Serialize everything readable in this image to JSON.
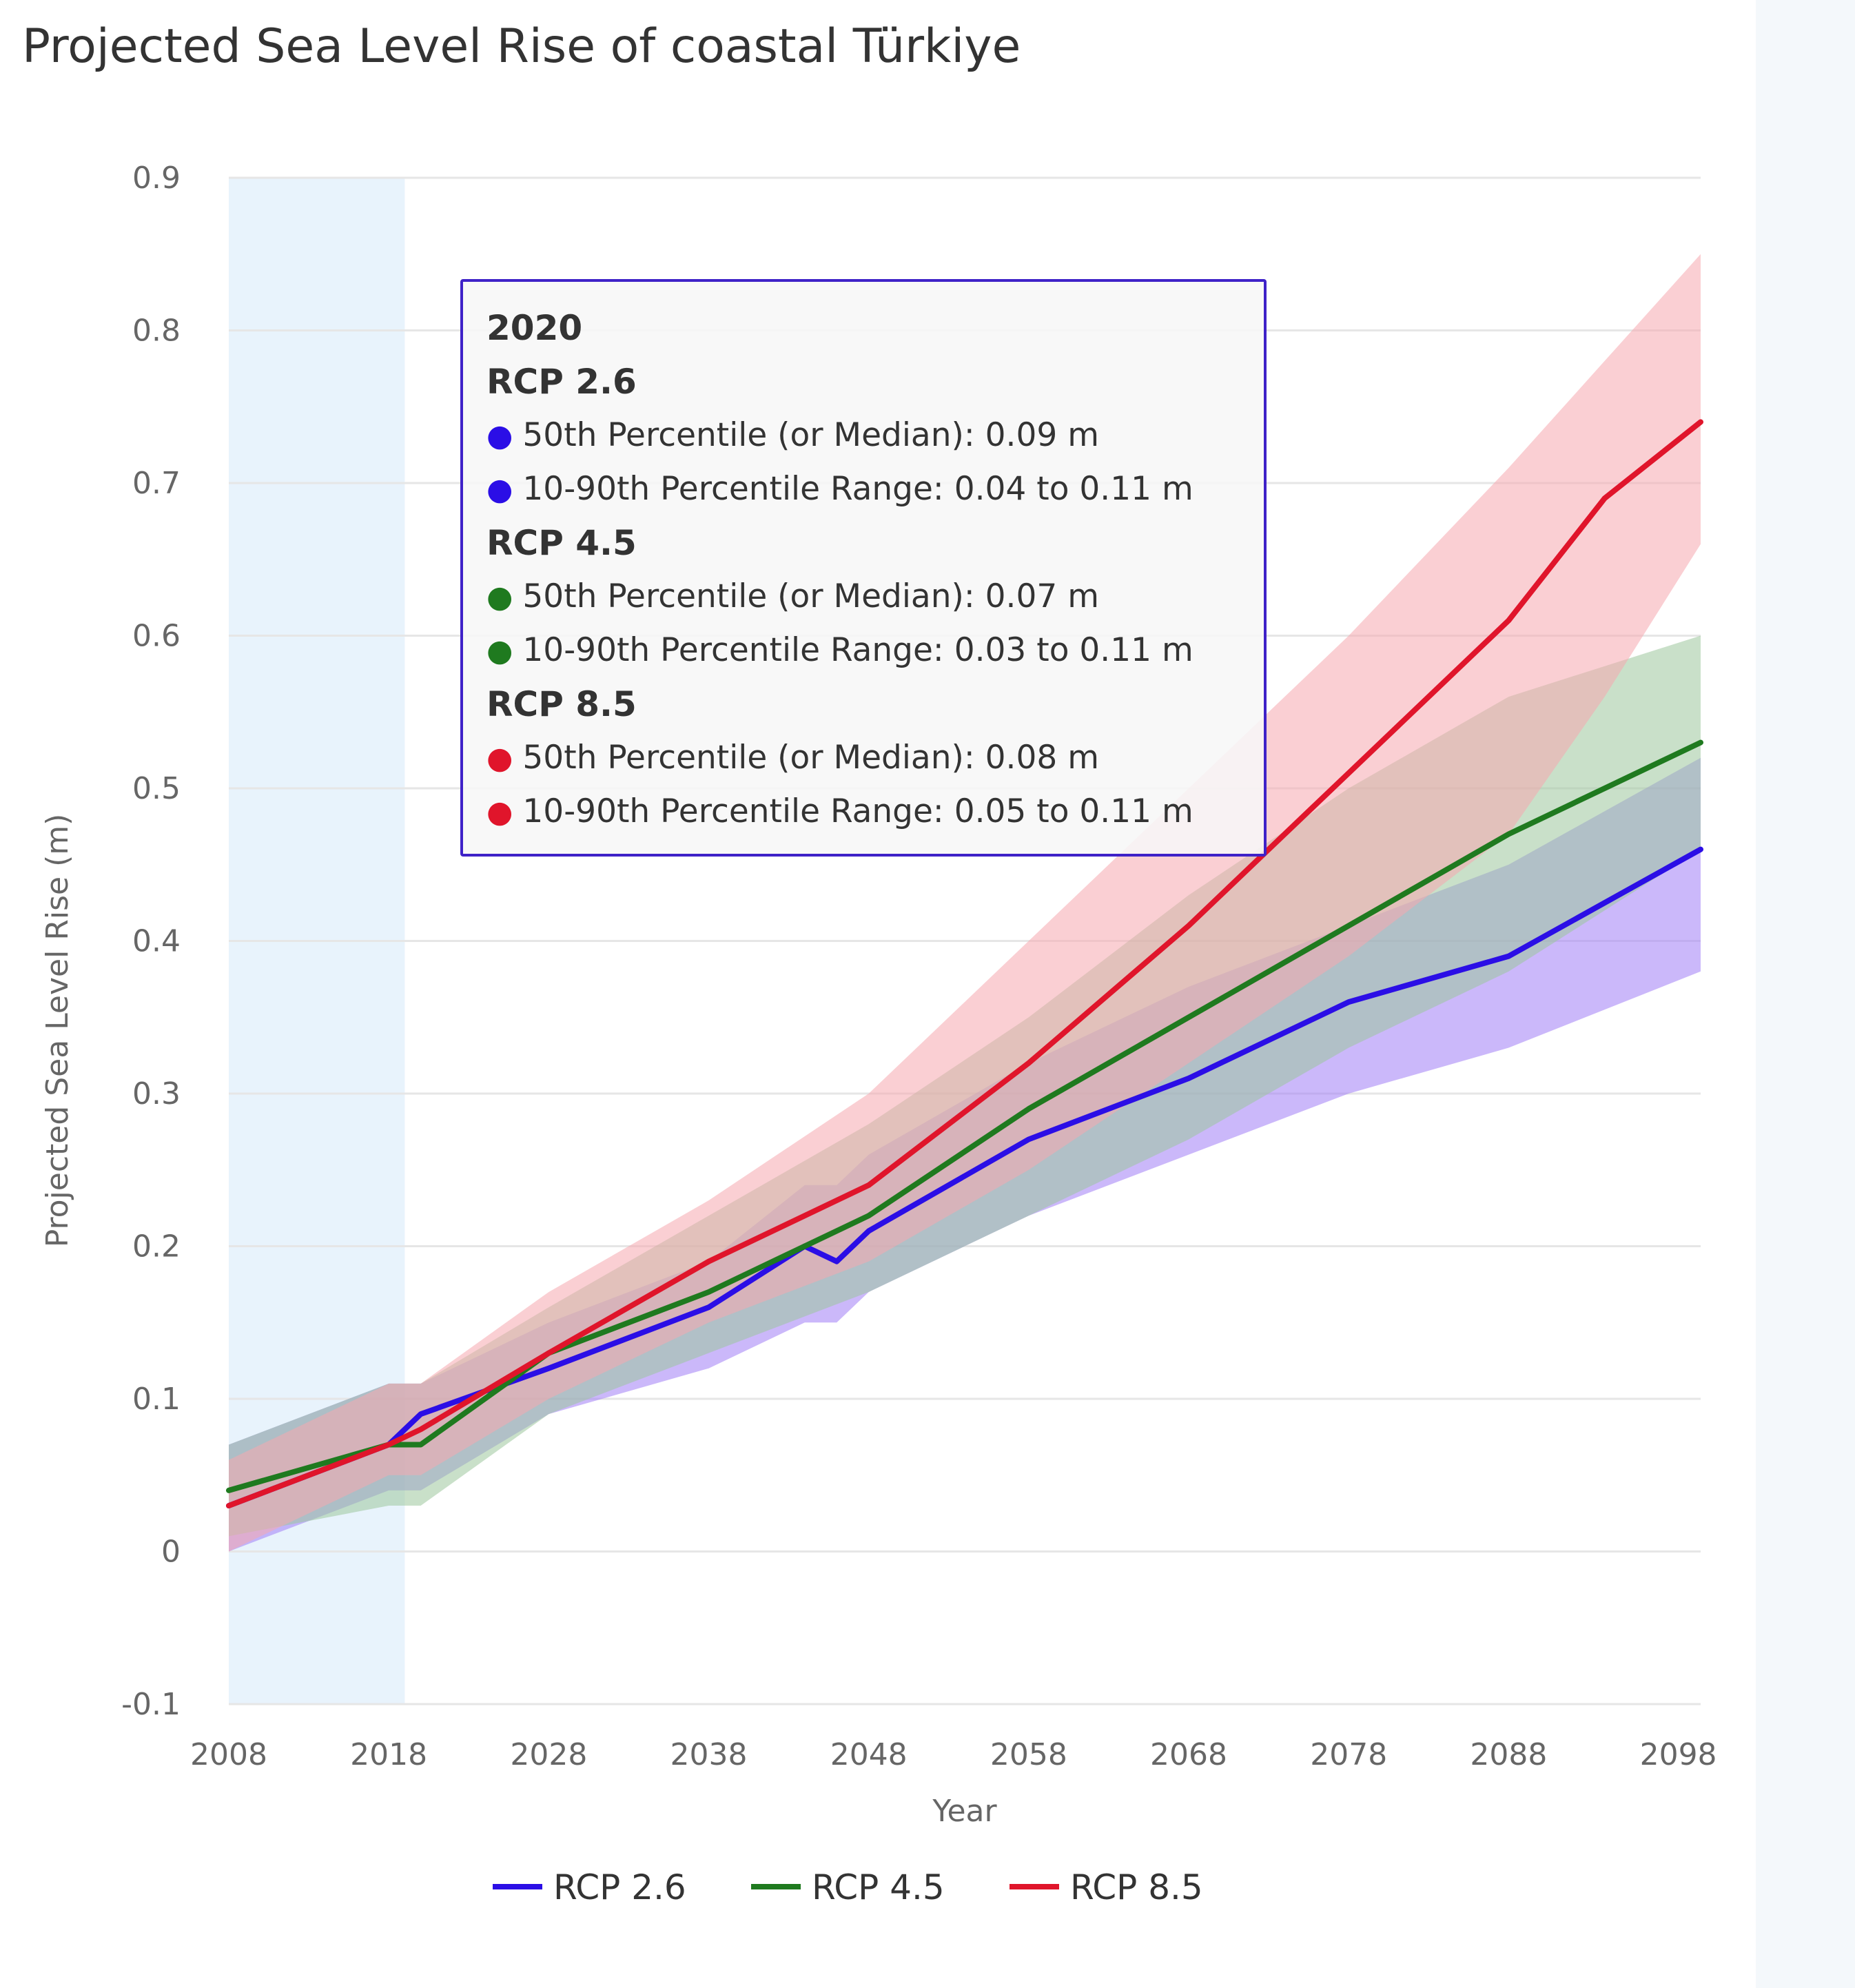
{
  "title": "Projected Sea Level Rise of coastal Türkiye",
  "tooltip": {
    "year": "2020",
    "groups": [
      {
        "name": "RCP 2.6",
        "color": "#2b0ee6",
        "median_label": "50th Percentile (or Median): 0.09 m",
        "range_label": "10-90th Percentile Range: 0.04 to 0.11 m"
      },
      {
        "name": "RCP 4.5",
        "color": "#1f7a1f",
        "median_label": "50th Percentile (or Median): 0.07 m",
        "range_label": "10-90th Percentile Range: 0.03 to 0.11 m"
      },
      {
        "name": "RCP 8.5",
        "color": "#e0152b",
        "median_label": "50th Percentile (or Median): 0.08 m",
        "range_label": "10-90th Percentile Range: 0.05 to 0.11 m"
      }
    ]
  },
  "chart_data": {
    "type": "line",
    "title": "Projected Sea Level Rise of coastal Türkiye",
    "xlabel": "Year",
    "ylabel": "Projected Sea Level Rise (m)",
    "xlim": [
      2008,
      2100
    ],
    "ylim": [
      -0.1,
      0.9
    ],
    "xticks": [
      "2008",
      "2018",
      "2028",
      "2038",
      "2048",
      "2058",
      "2068",
      "2078",
      "2088",
      "2098"
    ],
    "yticks": [
      "-0.1",
      "0",
      "0.1",
      "0.2",
      "0.3",
      "0.4",
      "0.5",
      "0.6",
      "0.7",
      "0.8",
      "0.9"
    ],
    "highlight_band": {
      "x_start": 2008,
      "x_end": 2019,
      "color": "#e8f3fc"
    },
    "legend": [
      "RCP 2.6",
      "RCP 4.5",
      "RCP 8.5"
    ],
    "series": [
      {
        "name": "RCP 2.6",
        "color": "#2b0ee6",
        "band_color": "#a07df5",
        "x": [
          2008,
          2018,
          2020,
          2028,
          2038,
          2044,
          2046,
          2048,
          2058,
          2068,
          2078,
          2088,
          2100
        ],
        "median": [
          0.03,
          0.07,
          0.09,
          0.12,
          0.16,
          0.2,
          0.19,
          0.21,
          0.27,
          0.31,
          0.36,
          0.39,
          0.46
        ],
        "low": [
          0.0,
          0.04,
          0.04,
          0.09,
          0.12,
          0.15,
          0.15,
          0.17,
          0.22,
          0.26,
          0.3,
          0.33,
          0.38
        ],
        "high": [
          0.07,
          0.11,
          0.11,
          0.15,
          0.19,
          0.24,
          0.24,
          0.26,
          0.32,
          0.37,
          0.41,
          0.45,
          0.52
        ]
      },
      {
        "name": "RCP 4.5",
        "color": "#1f7a1f",
        "band_color": "#9cc79c",
        "x": [
          2008,
          2018,
          2020,
          2028,
          2038,
          2048,
          2058,
          2068,
          2078,
          2088,
          2100
        ],
        "median": [
          0.04,
          0.07,
          0.07,
          0.13,
          0.17,
          0.22,
          0.29,
          0.35,
          0.41,
          0.47,
          0.53
        ],
        "low": [
          0.01,
          0.03,
          0.03,
          0.09,
          0.13,
          0.17,
          0.22,
          0.27,
          0.33,
          0.38,
          0.46
        ],
        "high": [
          0.07,
          0.11,
          0.11,
          0.16,
          0.22,
          0.28,
          0.35,
          0.43,
          0.5,
          0.56,
          0.6
        ]
      },
      {
        "name": "RCP 8.5",
        "color": "#e0152b",
        "band_color": "#f5a7ae",
        "x": [
          2008,
          2018,
          2020,
          2028,
          2038,
          2048,
          2058,
          2068,
          2078,
          2088,
          2094,
          2100
        ],
        "median": [
          0.03,
          0.07,
          0.08,
          0.13,
          0.19,
          0.24,
          0.32,
          0.41,
          0.51,
          0.61,
          0.69,
          0.74
        ],
        "low": [
          0.0,
          0.05,
          0.05,
          0.1,
          0.15,
          0.19,
          0.25,
          0.32,
          0.39,
          0.47,
          0.56,
          0.66
        ],
        "high": [
          0.06,
          0.11,
          0.11,
          0.17,
          0.23,
          0.3,
          0.4,
          0.5,
          0.6,
          0.71,
          0.78,
          0.85
        ]
      }
    ]
  }
}
